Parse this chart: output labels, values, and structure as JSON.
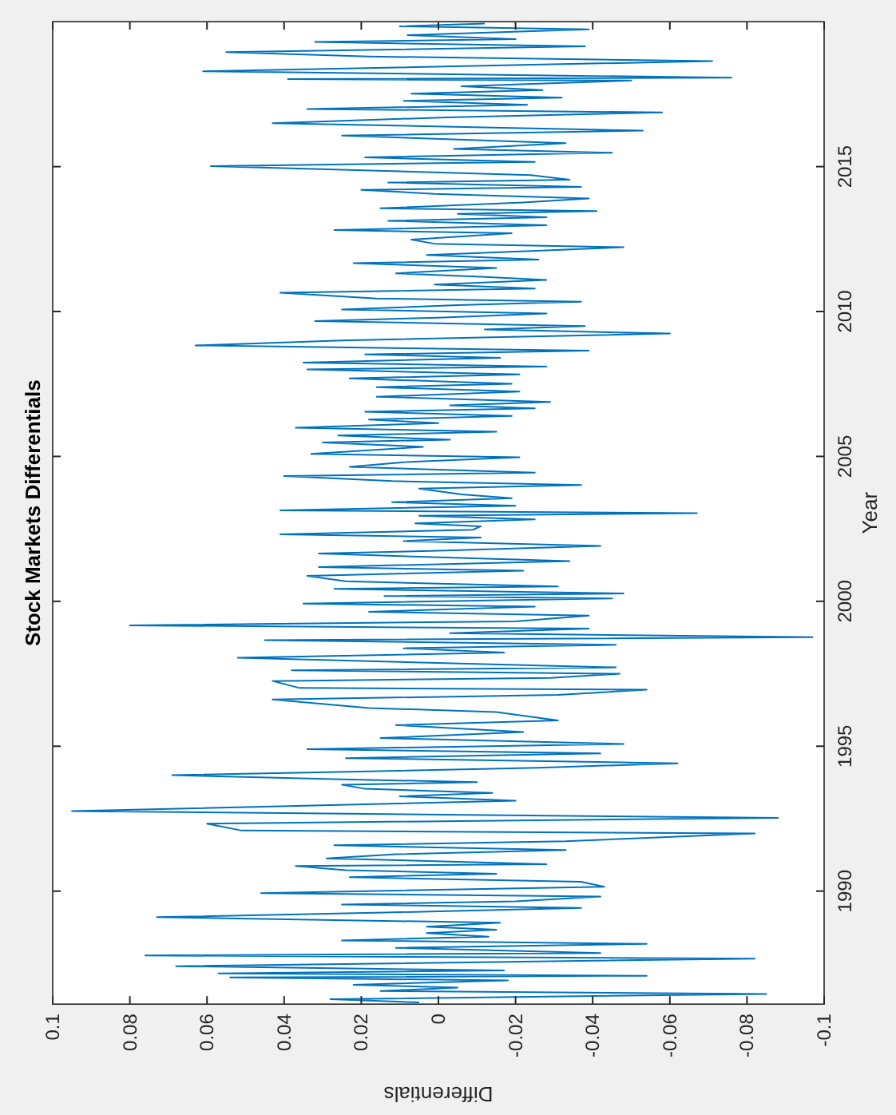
{
  "chart_data": {
    "type": "line",
    "title": "Stock Markets Differentials",
    "xlabel": "Differentials",
    "ylabel": "Year",
    "xlim": [
      0.1,
      -0.1
    ],
    "xticks": [
      0.1,
      0.08,
      0.06,
      0.04,
      0.02,
      0,
      -0.02,
      -0.04,
      -0.06,
      -0.08,
      -0.1
    ],
    "ylim": [
      1986.1,
      2020
    ],
    "yticks": [
      1990,
      1995,
      2000,
      2005,
      2010,
      2015
    ],
    "grid": false,
    "series": [
      {
        "color": "#0072bd",
        "values": [
          1986.16,
          1986.27,
          1986.45,
          1986.55,
          1986.67,
          1986.77,
          1986.92,
          1987.02,
          1987.08,
          1987.16,
          1987.26,
          1987.41,
          1987.67,
          1987.78,
          1987.86,
          1988.04,
          1988.18,
          1988.3,
          1988.43,
          1988.55,
          1988.67,
          1988.77,
          1988.91,
          1989.1,
          1989.26,
          1989.42,
          1989.54,
          1989.65,
          1989.81,
          1989.93,
          1990.15,
          1990.32,
          1990.48,
          1990.6,
          1990.72,
          1990.87,
          1990.93,
          1991.13,
          1991.27,
          1991.42,
          1991.58,
          1991.72,
          1991.99,
          1992.09,
          1992.33,
          1992.53,
          1992.76,
          1993.12,
          1993.27,
          1993.39,
          1993.53,
          1993.67,
          1993.76,
          1993.86,
          1994,
          1994.12,
          1994.26,
          1994.41,
          1994.59,
          1994.75,
          1994.9,
          1995.08,
          1995.28,
          1995.49,
          1995.73,
          1995.89,
          1996.18,
          1996.32,
          1996.61,
          1996.77,
          1996.95,
          1997.01,
          1997.25,
          1997.36,
          1997.5,
          1997.62,
          1997.72,
          1998.05,
          1998.23,
          1998.38,
          1998.5,
          1998.66,
          1998.76,
          1998.9,
          1999.06,
          1999.17,
          1999.31,
          1999.51,
          1999.64,
          1999.82,
          1999.92,
          2000.1,
          2000.18,
          2000.27,
          2000.43,
          2000.51,
          2000.69,
          2000.88,
          2001.06,
          2001.18,
          2001.39,
          2001.51,
          2001.65,
          2001.75,
          2001.91,
          2002.08,
          2002.2,
          2002.31,
          2002.47,
          2002.59,
          2002.69,
          2002.83,
          2002.95,
          2003.04,
          2003.14,
          2003.3,
          2003.42,
          2003.56,
          2003.69,
          2003.89,
          2004.01,
          2004.15,
          2004.32,
          2004.44,
          2004.64,
          2004.8,
          2004.97,
          2005.09,
          2005.33,
          2005.48,
          2005.58,
          2005.72,
          2005.85,
          2005.99,
          2006.15,
          2006.27,
          2006.4,
          2006.54,
          2006.66,
          2006.76,
          2006.88,
          2007.06,
          2007.24,
          2007.39,
          2007.51,
          2007.69,
          2007.83,
          2008,
          2008.1,
          2008.24,
          2008.4,
          2008.52,
          2008.65,
          2008.83,
          2009,
          2009.24,
          2009.38,
          2009.5,
          2009.67,
          2009.79,
          2009.93,
          2010.07,
          2010.22,
          2010.34,
          2010.45,
          2010.65,
          2010.79,
          2010.93,
          2011.09,
          2011.2,
          2011.32,
          2011.5,
          2011.67,
          2011.79,
          2011.95,
          2012.09,
          2012.22,
          2012.34,
          2012.48,
          2012.7,
          2012.81,
          2012.98,
          2013.13,
          2013.25,
          2013.37,
          2013.47,
          2013.56,
          2013.76,
          2013.9,
          2014.06,
          2014.2,
          2014.3,
          2014.45,
          2014.55,
          2014.71,
          2015.02,
          2015.16,
          2015.32,
          2015.48,
          2015.61,
          2015.81,
          2016.07,
          2016.24,
          2016.5,
          2016.7,
          2016.87,
          2016.99,
          2017.13,
          2017.27,
          2017.38,
          2017.52,
          2017.64,
          2017.77,
          2017.97,
          2018.02,
          2018.07,
          2018.29,
          2018.64,
          2018.8,
          2018.95,
          2019.15,
          2019.3,
          2019.4,
          2019.54,
          2019.74,
          2019.84,
          2019.94
        ],
        "x": [
          0.005,
          0.028,
          -0.085,
          0.015,
          -0.005,
          0.022,
          -0.018,
          0.054,
          -0.054,
          0.057,
          -0.017,
          0.068,
          -0.082,
          0.076,
          -0.042,
          0.011,
          -0.054,
          0.025,
          -0.013,
          0.003,
          -0.015,
          0.003,
          -0.016,
          0.073,
          0.014,
          -0.037,
          0.025,
          -0.02,
          -0.042,
          0.046,
          -0.043,
          -0.037,
          0.023,
          -0.015,
          0.024,
          0.037,
          -0.028,
          0.029,
          0.011,
          -0.033,
          0.027,
          -0.033,
          -0.082,
          0.051,
          0.06,
          -0.088,
          0.095,
          -0.02,
          0.01,
          -0.014,
          0.019,
          0.025,
          -0.01,
          0.025,
          0.069,
          0.023,
          -0.026,
          -0.062,
          0.024,
          -0.042,
          0.034,
          -0.048,
          0.015,
          -0.022,
          0.011,
          -0.031,
          -0.015,
          0.018,
          0.043,
          -0.031,
          -0.054,
          0.036,
          0.043,
          -0.029,
          -0.047,
          0.038,
          -0.046,
          0.052,
          -0.017,
          0.009,
          -0.046,
          0.045,
          -0.097,
          -0.003,
          -0.039,
          0.08,
          -0.02,
          -0.039,
          0.018,
          -0.025,
          0.035,
          -0.045,
          0.014,
          -0.048,
          0.027,
          -0.031,
          0.024,
          0.034,
          -0.022,
          0.031,
          -0.034,
          -0.002,
          0.031,
          -0.002,
          -0.042,
          0.009,
          -0.011,
          0.041,
          -0.009,
          -0.011,
          0.006,
          -0.025,
          0.005,
          -0.067,
          0.041,
          -0.02,
          0.012,
          -0.019,
          -0.006,
          0.005,
          -0.037,
          0.012,
          0.04,
          -0.025,
          0.023,
          0.009,
          -0.021,
          0.033,
          0.004,
          0.03,
          -0.003,
          0.026,
          -0.015,
          0.037,
          0,
          0.018,
          -0.019,
          0.019,
          -0.025,
          -0.003,
          -0.029,
          0.016,
          -0.021,
          0.016,
          -0.019,
          0.023,
          -0.021,
          0.034,
          -0.028,
          0.035,
          -0.016,
          0.019,
          -0.039,
          0.063,
          0.025,
          -0.06,
          -0.012,
          -0.038,
          0.032,
          0,
          -0.028,
          0.025,
          -0.005,
          -0.037,
          0.016,
          0.041,
          -0.025,
          0.001,
          -0.028,
          -0.011,
          0.011,
          -0.015,
          0.022,
          -0.026,
          0.003,
          -0.024,
          -0.048,
          0.001,
          0.007,
          -0.019,
          0.027,
          -0.028,
          0.013,
          -0.028,
          -0.005,
          -0.041,
          0.015,
          -0.022,
          -0.039,
          0.001,
          0.02,
          -0.037,
          0.013,
          -0.034,
          -0.024,
          0.059,
          -0.025,
          0.019,
          -0.045,
          -0.004,
          -0.033,
          0.025,
          -0.053,
          0.043,
          -0.002,
          -0.058,
          0.034,
          -0.023,
          0.009,
          -0.032,
          0.007,
          -0.027,
          -0.006,
          -0.05,
          0.039,
          -0.076,
          0.061,
          -0.071,
          0.018,
          0.055,
          -0.038,
          0.032,
          -0.02,
          0.008,
          -0.039,
          0.01,
          -0.012
        ]
      }
    ]
  }
}
